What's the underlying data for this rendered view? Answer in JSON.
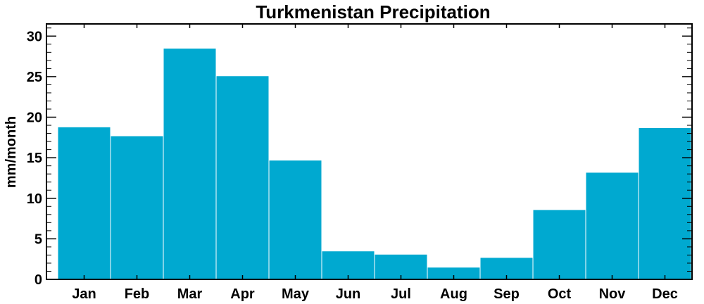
{
  "chart_data": {
    "type": "bar",
    "title": "Turkmenistan Precipitation",
    "xlabel": "",
    "ylabel": "mm/month",
    "categories": [
      "Jan",
      "Feb",
      "Mar",
      "Apr",
      "May",
      "Jun",
      "Jul",
      "Aug",
      "Sep",
      "Oct",
      "Nov",
      "Dec"
    ],
    "values": [
      18.8,
      17.7,
      28.5,
      25.1,
      14.7,
      3.5,
      3.1,
      1.5,
      2.7,
      8.6,
      13.2,
      18.7
    ],
    "ylim": [
      0,
      31.5
    ],
    "yticks": [
      "0",
      "5",
      "10",
      "15",
      "20",
      "25",
      "30"
    ],
    "bar_color": "#00A9D0",
    "grid": false,
    "legend": "none"
  }
}
